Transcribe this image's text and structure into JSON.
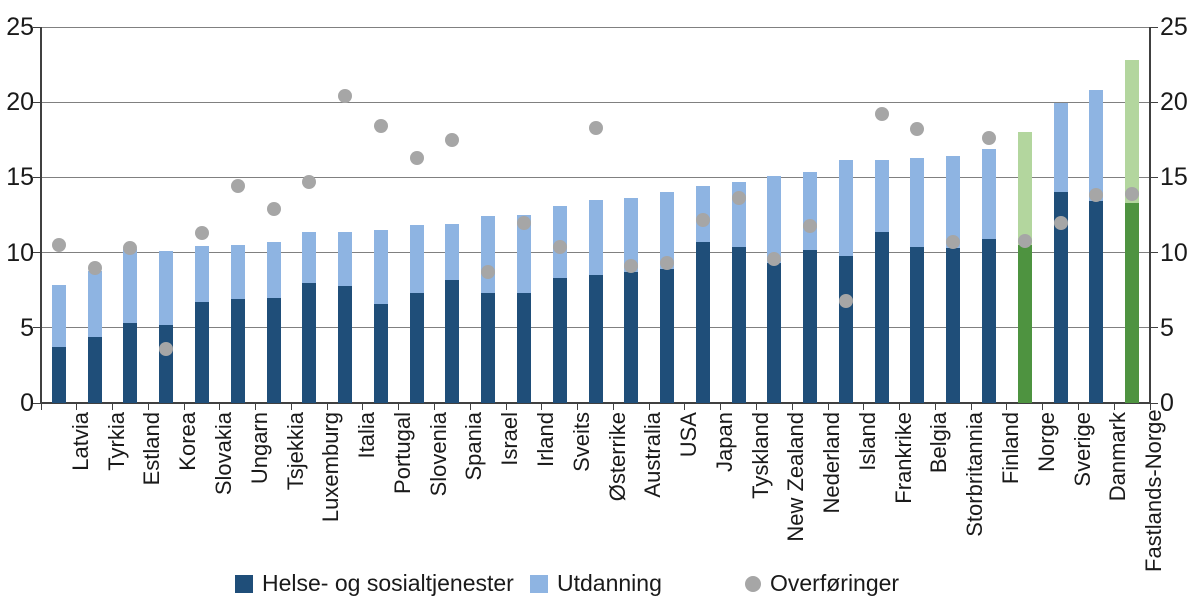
{
  "chart_data": {
    "type": "bar",
    "subtype": "stacked-bars-with-scatter-overlay",
    "title": "",
    "xlabel": "",
    "ylabel": "",
    "ylim": [
      0,
      25
    ],
    "yticks": [
      0,
      5,
      10,
      15,
      20,
      25
    ],
    "y_axis_sides": [
      "left",
      "right"
    ],
    "grid": "horizontal",
    "legend_position": "bottom",
    "categories": [
      "Latvia",
      "Tyrkia",
      "Estland",
      "Korea",
      "Slovakia",
      "Ungarn",
      "Tsjekkia",
      "Luxemburg",
      "Italia",
      "Portugal",
      "Slovenia",
      "Spania",
      "Israel",
      "Irland",
      "Sveits",
      "Østerrike",
      "Australia",
      "USA",
      "Japan",
      "Tyskland",
      "New Zealand",
      "Nederland",
      "Island",
      "Frankrike",
      "Belgia",
      "Storbritannia",
      "Finland",
      "Norge",
      "Sverige",
      "Danmark",
      "Fastlands-Norge"
    ],
    "highlighted_categories": [
      "Norge",
      "Fastlands-Norge"
    ],
    "series": [
      {
        "name": "Helse- og sosialtjenester",
        "type": "bar",
        "stacked": true,
        "color": "#1F4E79",
        "highlight_color": "#4E9340",
        "values": [
          3.7,
          4.4,
          5.3,
          5.2,
          6.7,
          6.9,
          7.0,
          8.0,
          7.8,
          6.6,
          7.3,
          8.2,
          7.3,
          7.3,
          8.3,
          8.5,
          8.7,
          8.9,
          10.7,
          10.4,
          9.3,
          10.2,
          9.8,
          11.4,
          10.4,
          10.3,
          10.9,
          10.5,
          14.0,
          13.4,
          13.3
        ]
      },
      {
        "name": "Utdanning",
        "type": "bar",
        "stacked": true,
        "color": "#8EB4E2",
        "highlight_color": "#B3D69E",
        "values": [
          4.1,
          4.4,
          4.9,
          4.9,
          3.7,
          3.6,
          3.7,
          3.4,
          3.6,
          4.9,
          4.5,
          3.7,
          5.1,
          5.2,
          4.8,
          5.0,
          4.9,
          5.1,
          3.7,
          4.3,
          5.8,
          5.2,
          6.4,
          4.8,
          5.9,
          6.1,
          6.0,
          7.5,
          5.9,
          7.4,
          9.5
        ]
      },
      {
        "name": "Overføringer",
        "type": "scatter",
        "color": "#A6A6A6",
        "values": [
          10.5,
          9.0,
          10.3,
          3.6,
          11.3,
          14.4,
          12.9,
          14.7,
          20.4,
          18.4,
          16.3,
          17.5,
          8.7,
          12.0,
          10.4,
          18.3,
          9.1,
          9.3,
          12.2,
          13.6,
          9.6,
          11.8,
          6.8,
          19.2,
          18.2,
          10.7,
          17.6,
          10.8,
          12.0,
          13.8,
          13.9
        ]
      }
    ]
  },
  "legend": {
    "items": [
      {
        "label": "Helse- og sosialtjenester",
        "swatch": "dark-blue-square"
      },
      {
        "label": "Utdanning",
        "swatch": "light-blue-square"
      },
      {
        "label": "Overføringer",
        "swatch": "gray-circle"
      }
    ]
  },
  "colors": {
    "bar_dark_blue": "#1F4E79",
    "bar_light_blue": "#8EB4E2",
    "bar_dark_green": "#4E9340",
    "bar_light_green": "#B3D69E",
    "scatter_gray": "#A6A6A6",
    "gridline": "#808080",
    "axis": "#404040",
    "text": "#1a1a1a"
  }
}
